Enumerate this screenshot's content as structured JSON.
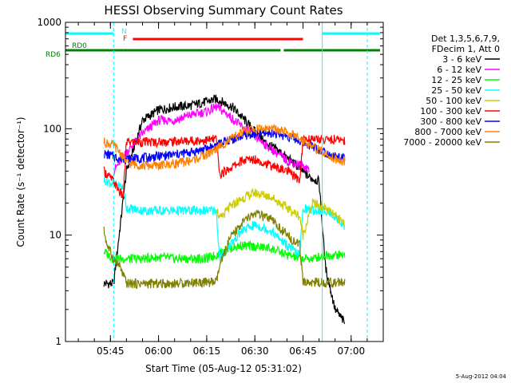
{
  "chart_data": {
    "type": "line",
    "title": "HESSI Observing Summary Count Rates",
    "xlabel": "Start Time (05-Aug-12 05:31:02)",
    "ylabel": "Count Rate (s⁻¹ detector⁻¹)",
    "yscale": "log",
    "ylim": [
      1,
      1000
    ],
    "xlim": [
      "05:31",
      "07:10"
    ],
    "x_ticks": [
      "05:45",
      "06:00",
      "06:15",
      "06:30",
      "06:45",
      "07:00"
    ],
    "y_ticks": [
      "1",
      "10",
      "100",
      "1000"
    ],
    "grid": false,
    "legend_position": "right",
    "legend_header": [
      "Det 1,3,5,6,7,9,",
      "FDecim 1, Att 0"
    ],
    "timestamp": "5-Aug-2012 04:04",
    "flags": [
      {
        "label": "N",
        "color": "#00ffff",
        "segments": [
          [
            "05:31",
            "05:46"
          ],
          [
            "06:51",
            "07:09"
          ]
        ]
      },
      {
        "label": "F",
        "color": "#ff0000",
        "segments": [
          [
            "05:52",
            "06:45"
          ]
        ]
      },
      {
        "label": "RD0",
        "color": "#008000",
        "segments": []
      },
      {
        "label": "RD6",
        "color": "#008000",
        "segments": [
          [
            "05:31",
            "05:49"
          ],
          [
            "05:49",
            "06:14"
          ],
          [
            "06:14",
            "06:38"
          ],
          [
            "06:39",
            "07:09"
          ]
        ]
      }
    ],
    "vertical_lines": [
      {
        "time": "05:46",
        "style": "dashed",
        "color": "#00ffff"
      },
      {
        "time": "06:51",
        "style": "solid",
        "color": "#00ffff"
      },
      {
        "time": "07:05",
        "style": "dashed",
        "color": "#00ffff"
      }
    ],
    "series": [
      {
        "name": "3 - 6 keV",
        "color": "#000000",
        "x": [
          "05:43",
          "05:46",
          "05:50",
          "05:55",
          "06:00",
          "06:05",
          "06:10",
          "06:15",
          "06:18",
          "06:23",
          "06:28",
          "06:33",
          "06:38",
          "06:43",
          "06:47",
          "06:50",
          "06:52",
          "06:55",
          "06:58"
        ],
        "y": [
          3.5,
          3.5,
          40,
          120,
          150,
          160,
          165,
          180,
          190,
          160,
          110,
          75,
          60,
          45,
          35,
          32,
          5,
          2,
          1.5
        ]
      },
      {
        "name": "6 - 12 keV",
        "color": "#ff00ff",
        "x": [
          "05:46",
          "05:50",
          "05:55",
          "06:00",
          "06:05",
          "06:10",
          "06:15",
          "06:18",
          "06:21",
          "06:25",
          "06:30",
          "06:35",
          "06:40",
          "06:45",
          "06:47"
        ],
        "y": [
          40,
          60,
          90,
          120,
          120,
          135,
          145,
          160,
          140,
          110,
          85,
          65,
          50,
          45,
          42
        ]
      },
      {
        "name": "12 - 25 keV",
        "color": "#00ff00",
        "x": [
          "05:43",
          "05:46",
          "05:50",
          "05:55",
          "06:00",
          "06:05",
          "06:10",
          "06:15",
          "06:18",
          "06:22",
          "06:26",
          "06:30",
          "06:35",
          "06:40",
          "06:45",
          "06:48",
          "06:52",
          "06:55",
          "06:58"
        ],
        "y": [
          7,
          6,
          6,
          6,
          6.2,
          6,
          6,
          6,
          6.5,
          7.5,
          8,
          7.8,
          7.5,
          6.5,
          6,
          6,
          6.5,
          6.5,
          6.5
        ]
      },
      {
        "name": "25 - 50 keV",
        "color": "#00ffff",
        "x": [
          "05:43",
          "05:46",
          "05:49",
          "05:50",
          "05:55",
          "06:00",
          "06:05",
          "06:10",
          "06:15",
          "06:18",
          "06:19",
          "06:22",
          "06:26",
          "06:30",
          "06:35",
          "06:40",
          "06:44",
          "06:45",
          "06:48",
          "06:52",
          "06:55",
          "06:58"
        ],
        "y": [
          33,
          30,
          28,
          18,
          17,
          17,
          17,
          17,
          17,
          17,
          6,
          8,
          11,
          12.5,
          11,
          8,
          6.5,
          18,
          17,
          17,
          15,
          12
        ]
      },
      {
        "name": "50 - 100 keV",
        "color": "#cccc00",
        "x": [
          "06:18",
          "06:19",
          "06:22",
          "06:26",
          "06:30",
          "06:35",
          "06:40",
          "06:44",
          "06:45",
          "06:48",
          "06:52",
          "06:55",
          "06:58"
        ],
        "y": [
          19,
          14,
          18,
          22,
          25,
          23,
          18,
          15,
          10,
          20,
          18,
          15,
          13
        ]
      },
      {
        "name": "100 - 300 keV",
        "color": "#ff0000",
        "x": [
          "05:43",
          "05:46",
          "05:48",
          "05:49",
          "05:50",
          "05:55",
          "06:00",
          "06:05",
          "06:10",
          "06:15",
          "06:18",
          "06:19",
          "06:22",
          "06:26",
          "06:30",
          "06:35",
          "06:40",
          "06:44",
          "06:45",
          "06:48",
          "06:52",
          "06:55",
          "06:58"
        ],
        "y": [
          40,
          32,
          25,
          23,
          75,
          75,
          75,
          76,
          77,
          78,
          80,
          37,
          42,
          50,
          52,
          45,
          40,
          33,
          80,
          80,
          79,
          79,
          78
        ]
      },
      {
        "name": "300 - 800 keV",
        "color": "#0000ff",
        "x": [
          "05:43",
          "05:46",
          "05:48",
          "05:50",
          "05:55",
          "06:00",
          "06:05",
          "06:10",
          "06:15",
          "06:18",
          "06:22",
          "06:26",
          "06:30",
          "06:35",
          "06:40",
          "06:45",
          "06:48",
          "06:52",
          "06:55",
          "06:58"
        ],
        "y": [
          58,
          55,
          52,
          52,
          53,
          55,
          57,
          60,
          65,
          70,
          78,
          85,
          90,
          92,
          85,
          75,
          68,
          60,
          55,
          52
        ]
      },
      {
        "name": "800 - 7000 keV",
        "color": "#ff8000",
        "x": [
          "05:43",
          "05:46",
          "05:48",
          "05:50",
          "05:55",
          "06:00",
          "06:05",
          "06:10",
          "06:15",
          "06:18",
          "06:22",
          "06:26",
          "06:30",
          "06:35",
          "06:40",
          "06:45",
          "06:48",
          "06:52",
          "06:55",
          "06:58"
        ],
        "y": [
          75,
          70,
          60,
          48,
          45,
          45,
          47,
          50,
          57,
          65,
          78,
          92,
          100,
          100,
          92,
          78,
          68,
          58,
          52,
          50
        ]
      },
      {
        "name": "7000 - 20000 keV",
        "color": "#808000",
        "x": [
          "05:43",
          "05:44",
          "05:46",
          "05:48",
          "05:50",
          "05:55",
          "06:00",
          "06:05",
          "06:10",
          "06:15",
          "06:18",
          "06:19",
          "06:22",
          "06:26",
          "06:30",
          "06:35",
          "06:40",
          "06:44",
          "06:45",
          "06:48",
          "06:52",
          "06:55",
          "06:58"
        ],
        "y": [
          11,
          8,
          6,
          5,
          3.5,
          3.5,
          3.5,
          3.5,
          3.6,
          3.6,
          3.6,
          5,
          9,
          13,
          16,
          14,
          10,
          8,
          3.6,
          3.6,
          3.6,
          3.6,
          3.6
        ]
      }
    ]
  }
}
